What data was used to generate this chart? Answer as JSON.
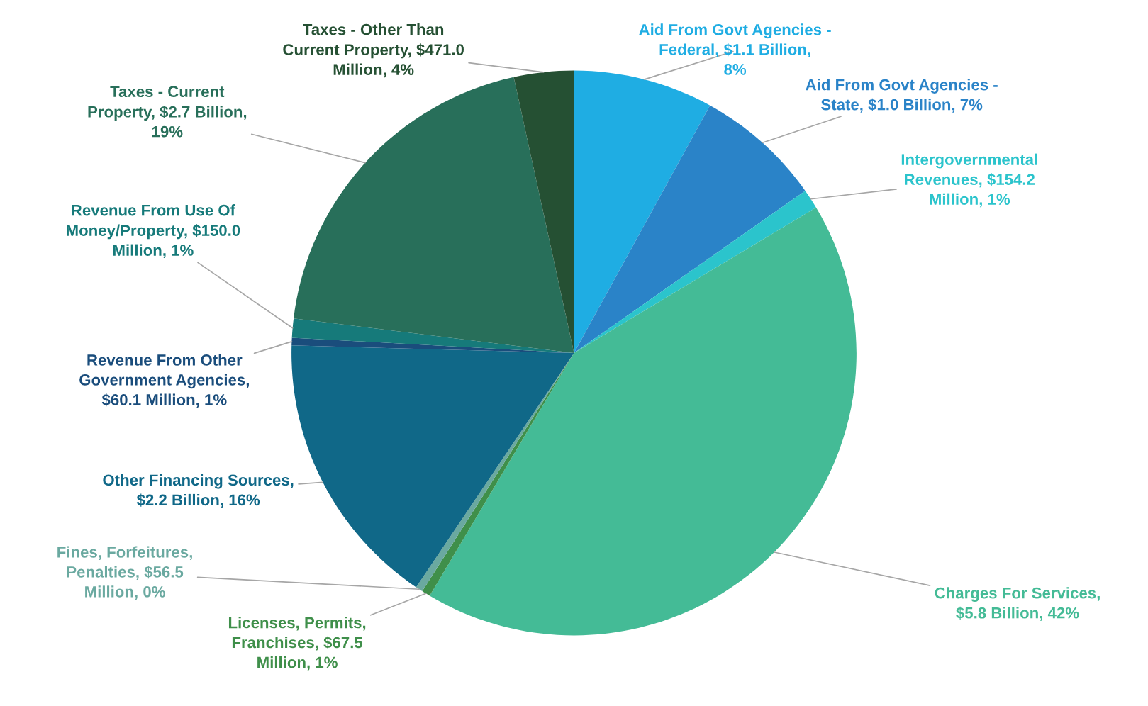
{
  "chart_data": {
    "type": "pie",
    "categories": [
      "Aid From Govt Agencies - Federal, $1.1 Billion, 8%",
      "Aid From Govt Agencies - State, $1.0 Billion, 7%",
      "Intergovernmental Revenues, $154.2 Million, 1%",
      "Charges For Services, $5.8 Billion, 42%",
      "Licenses, Permits, Franchises, $67.5 Million, 1%",
      "Fines, Forfeitures, Penalties, $56.5 Million, 0%",
      "Other Financing Sources, $2.2 Billion, 16%",
      "Revenue From Other Government Agencies, $60.1 Million, 1%",
      "Revenue From Use Of Money/Property, $150.0 Million, 1%",
      "Taxes - Current Property, $2.7 Billion, 19%",
      "Taxes - Other Than Current Property, $471.0 Million, 4%"
    ],
    "values": [
      1.1,
      1.0,
      0.1542,
      5.8,
      0.0675,
      0.0565,
      2.2,
      0.0601,
      0.15,
      2.7,
      0.471
    ],
    "colors": [
      "#1fade3",
      "#2a83c8",
      "#2bc4cc",
      "#44bb96",
      "#3f8f4a",
      "#6aa9a0",
      "#106888",
      "#1a4d7c",
      "#167a7a",
      "#286f5a",
      "#255033"
    ]
  }
}
